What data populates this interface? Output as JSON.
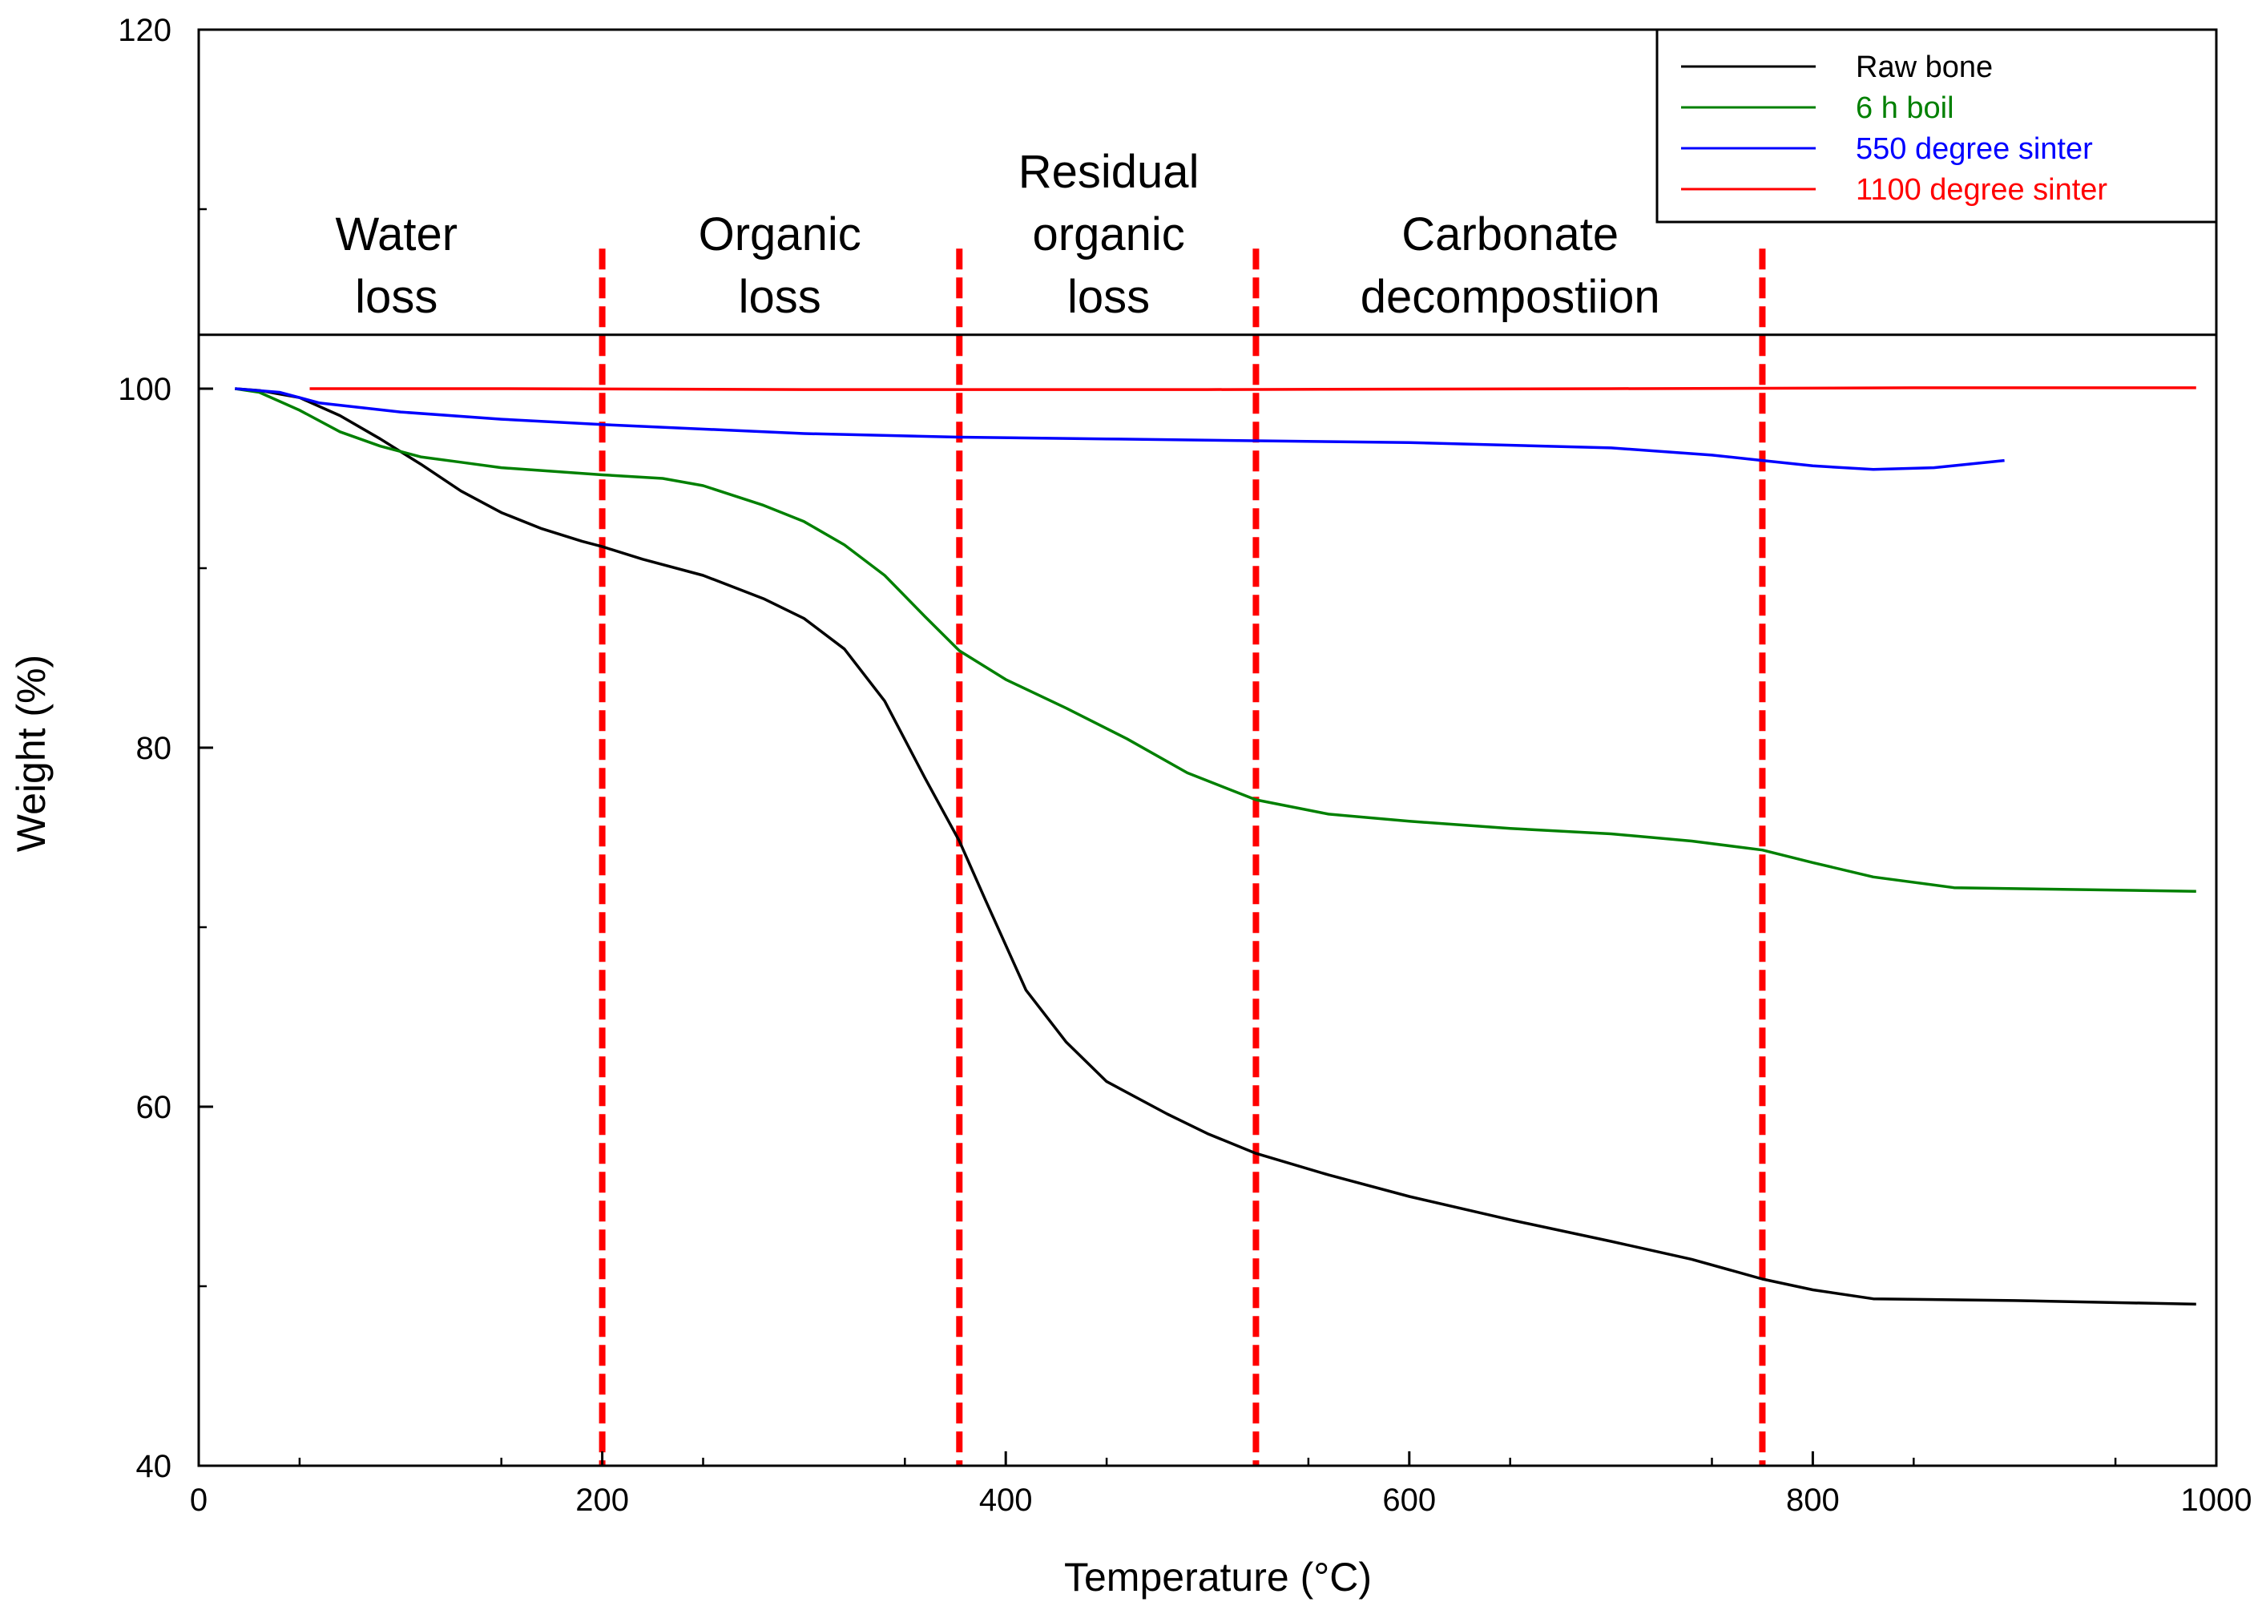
{
  "chart_data": {
    "type": "line",
    "title": "",
    "xlabel": "Temperature (°C)",
    "ylabel": "Weight (%)",
    "xlim": [
      0,
      1000
    ],
    "ylim": [
      40,
      120
    ],
    "x_ticks": [
      "0",
      "200",
      "400",
      "600",
      "800",
      "1000"
    ],
    "x_tick_values": [
      0,
      200,
      400,
      600,
      800,
      1000
    ],
    "y_ticks": [
      "40",
      "60",
      "80",
      "100",
      "120"
    ],
    "y_tick_values": [
      40,
      60,
      80,
      100,
      120
    ],
    "legend_position": "top-right",
    "annotation_box_bottom": 103,
    "region_boundaries": [
      200,
      377,
      524,
      775
    ],
    "region_boundary_top": 107.8,
    "region_boundary_color": "#ff0000",
    "regions": [
      {
        "lines": [
          "Water",
          "loss"
        ],
        "x": 98
      },
      {
        "lines": [
          "Organic",
          "loss"
        ],
        "x": 288
      },
      {
        "lines": [
          "Residual",
          "organic",
          "loss"
        ],
        "x": 451
      },
      {
        "lines": [
          "Carbonate",
          "decompostiion"
        ],
        "x": 650
      }
    ],
    "series": [
      {
        "name": "Raw bone",
        "color": "#000000",
        "x": [
          18,
          30,
          50,
          70,
          90,
          110,
          130,
          150,
          170,
          190,
          200,
          220,
          250,
          280,
          300,
          320,
          340,
          360,
          377,
          390,
          410,
          430,
          450,
          480,
          500,
          524,
          560,
          600,
          650,
          700,
          740,
          775,
          800,
          830,
          900,
          990
        ],
        "y": [
          100,
          99.9,
          99.5,
          98.5,
          97.2,
          95.8,
          94.3,
          93.1,
          92.2,
          91.5,
          91.2,
          90.5,
          89.6,
          88.3,
          87.2,
          85.5,
          82.6,
          78.3,
          74.8,
          71.5,
          66.5,
          63.6,
          61.4,
          59.6,
          58.5,
          57.4,
          56.2,
          55,
          53.7,
          52.5,
          51.5,
          50.4,
          49.8,
          49.3,
          49.2,
          49.0
        ]
      },
      {
        "name": "6 h boil",
        "color": "#008000",
        "x": [
          18,
          30,
          50,
          70,
          90,
          110,
          130,
          150,
          200,
          230,
          250,
          280,
          300,
          320,
          340,
          360,
          377,
          400,
          430,
          460,
          490,
          524,
          560,
          600,
          650,
          700,
          740,
          775,
          800,
          830,
          870,
          990
        ],
        "y": [
          100,
          99.8,
          98.8,
          97.6,
          96.8,
          96.2,
          95.9,
          95.6,
          95.2,
          95,
          94.6,
          93.5,
          92.6,
          91.3,
          89.6,
          87.3,
          85.4,
          83.8,
          82.2,
          80.5,
          78.6,
          77.1,
          76.3,
          75.9,
          75.5,
          75.2,
          74.8,
          74.3,
          73.6,
          72.8,
          72.2,
          72.0
        ]
      },
      {
        "name": "550 degree sinter",
        "color": "#0000ff",
        "x": [
          18,
          40,
          60,
          100,
          150,
          200,
          300,
          377,
          450,
          524,
          600,
          700,
          750,
          775,
          800,
          830,
          860,
          895
        ],
        "y": [
          100,
          99.8,
          99.2,
          98.7,
          98.3,
          98,
          97.5,
          97.3,
          97.2,
          97.1,
          97,
          96.7,
          96.3,
          96.0,
          95.7,
          95.5,
          95.6,
          96.0
        ]
      },
      {
        "name": "1100 degree sinter",
        "color": "#ff0000",
        "x": [
          55,
          150,
          300,
          500,
          700,
          850,
          990
        ],
        "y": [
          100,
          100,
          99.95,
          99.95,
          100,
          100.05,
          100.05
        ]
      }
    ]
  }
}
